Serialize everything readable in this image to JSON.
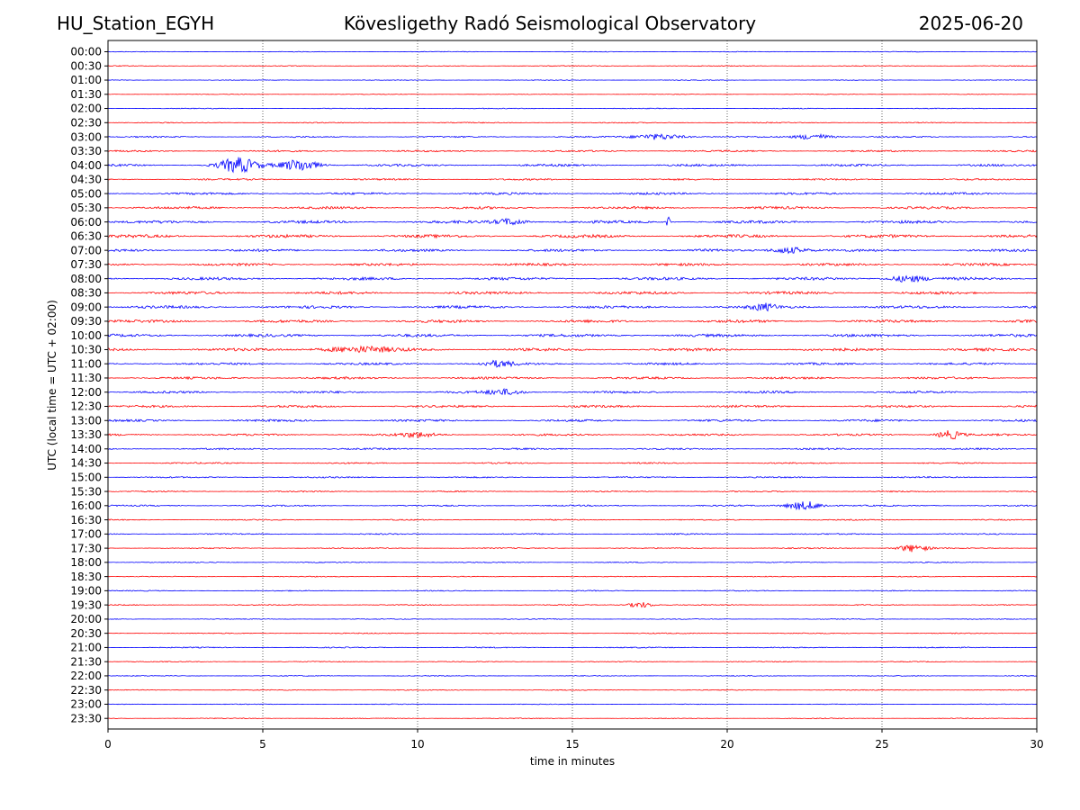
{
  "header": {
    "station": "HU_Station_EGYH",
    "title": "Kövesligethy Radó Seismological Observatory",
    "date": "2025-06-20"
  },
  "chart_data": {
    "type": "line",
    "title": "Kövesligethy Radó Seismological Observatory",
    "xlabel": "time in minutes",
    "ylabel": "UTC (local time = UTC + 02:00)",
    "xlim": [
      0,
      30
    ],
    "x_ticks": [
      "0",
      "5",
      "10",
      "15",
      "20",
      "25",
      "30"
    ],
    "vertical_gridlines_at": [
      5,
      10,
      15,
      20,
      25
    ],
    "grid": "vertical dotted",
    "colors": {
      "even_rows": "#0000ff",
      "odd_rows": "#ff0000"
    },
    "rows": [
      "00:00",
      "00:30",
      "01:00",
      "01:30",
      "02:00",
      "02:30",
      "03:00",
      "03:30",
      "04:00",
      "04:30",
      "05:00",
      "05:30",
      "06:00",
      "06:30",
      "07:00",
      "07:30",
      "08:00",
      "08:30",
      "09:00",
      "09:30",
      "10:00",
      "10:30",
      "11:00",
      "11:30",
      "12:00",
      "12:30",
      "13:00",
      "13:30",
      "14:00",
      "14:30",
      "15:00",
      "15:30",
      "16:00",
      "16:30",
      "17:00",
      "17:30",
      "18:00",
      "18:30",
      "19:00",
      "19:30",
      "20:00",
      "20:30",
      "21:00",
      "21:30",
      "22:00",
      "22:30",
      "23:00",
      "23:30"
    ],
    "noise_level": [
      0.25,
      0.3,
      0.25,
      0.2,
      0.3,
      0.35,
      0.5,
      0.6,
      0.8,
      0.6,
      0.8,
      0.9,
      1.0,
      1.1,
      0.9,
      0.9,
      1.0,
      1.0,
      1.0,
      1.0,
      1.0,
      1.0,
      0.8,
      0.8,
      0.8,
      0.8,
      0.8,
      0.7,
      0.6,
      0.5,
      0.5,
      0.45,
      0.5,
      0.4,
      0.45,
      0.4,
      0.35,
      0.3,
      0.35,
      0.35,
      0.3,
      0.35,
      0.4,
      0.3,
      0.3,
      0.3,
      0.25,
      0.3
    ],
    "events": [
      {
        "row": "03:00",
        "t": 17.8,
        "w": 0.8,
        "a": 2.0
      },
      {
        "row": "03:00",
        "t": 22.8,
        "w": 0.6,
        "a": 2.0
      },
      {
        "row": "04:00",
        "t": 4.2,
        "w": 0.6,
        "a": 5.0
      },
      {
        "row": "04:00",
        "t": 6.2,
        "w": 0.6,
        "a": 4.0
      },
      {
        "row": "06:00",
        "t": 13.0,
        "w": 0.5,
        "a": 2.2
      },
      {
        "row": "06:00",
        "t": 18.1,
        "w": 0.05,
        "a": 6.0
      },
      {
        "row": "07:00",
        "t": 22.0,
        "w": 0.6,
        "a": 2.2
      },
      {
        "row": "08:00",
        "t": 25.8,
        "w": 0.6,
        "a": 2.2
      },
      {
        "row": "09:00",
        "t": 21.2,
        "w": 0.4,
        "a": 2.0
      },
      {
        "row": "10:30",
        "t": 8.0,
        "w": 1.2,
        "a": 1.8
      },
      {
        "row": "11:00",
        "t": 12.6,
        "w": 0.5,
        "a": 2.0
      },
      {
        "row": "12:00",
        "t": 12.8,
        "w": 0.6,
        "a": 1.8
      },
      {
        "row": "13:30",
        "t": 10.0,
        "w": 0.6,
        "a": 1.6
      },
      {
        "row": "13:30",
        "t": 27.2,
        "w": 0.4,
        "a": 3.0
      },
      {
        "row": "16:00",
        "t": 22.5,
        "w": 0.6,
        "a": 3.0
      },
      {
        "row": "17:30",
        "t": 26.0,
        "w": 0.5,
        "a": 2.5
      },
      {
        "row": "19:30",
        "t": 17.2,
        "w": 0.4,
        "a": 2.0
      }
    ]
  }
}
